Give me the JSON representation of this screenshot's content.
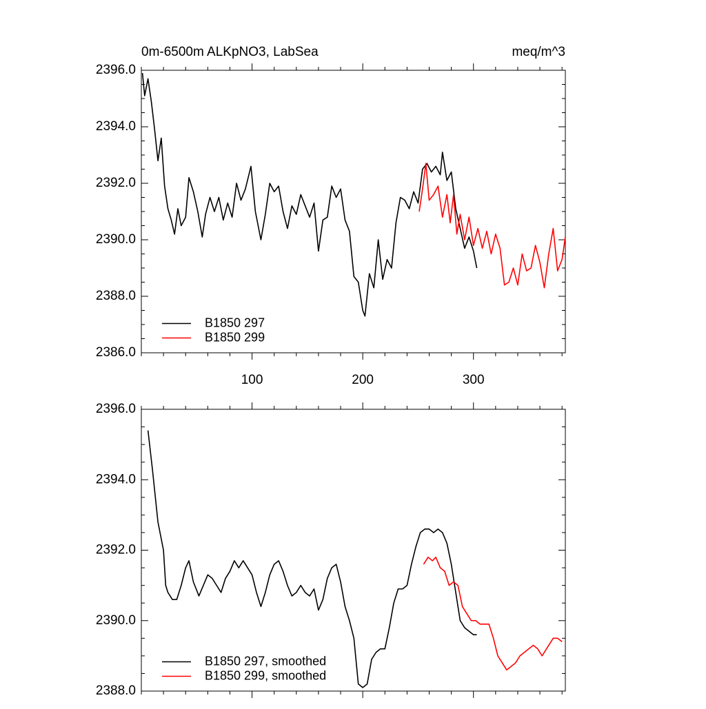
{
  "chart_data": [
    {
      "type": "line",
      "title": "0m-6500m ALKpNO3, LabSea",
      "units": "meq/m^3",
      "xlim": [
        0,
        383
      ],
      "ylim": [
        2386,
        2396
      ],
      "xticks": [
        100,
        200,
        300
      ],
      "yticks": [
        {
          "value": 2386,
          "label": "2386.0"
        },
        {
          "value": 2388,
          "label": "2388.0"
        },
        {
          "value": 2390,
          "label": "2390.0"
        },
        {
          "value": 2392,
          "label": "2392.0"
        },
        {
          "value": 2394,
          "label": "2394.0"
        },
        {
          "value": 2396,
          "label": "2396.0"
        }
      ],
      "legend": "lower left",
      "series": [
        {
          "name": "B1850 297",
          "color": "#000000",
          "x": [
            1,
            3,
            6,
            9,
            12,
            15,
            18,
            21,
            24,
            27,
            30,
            33,
            36,
            40,
            43,
            47,
            51,
            55,
            58,
            62,
            66,
            70,
            74,
            78,
            82,
            86,
            90,
            94,
            99,
            103,
            108,
            112,
            116,
            120,
            124,
            128,
            132,
            136,
            140,
            144,
            148,
            152,
            156,
            160,
            164,
            168,
            172,
            176,
            180,
            184,
            188,
            192,
            196,
            200,
            202,
            206,
            210,
            214,
            218,
            222,
            226,
            230,
            234,
            238,
            242,
            246,
            250,
            254,
            258,
            262,
            266,
            270,
            272,
            276,
            280,
            284,
            288,
            292,
            296,
            300,
            303
          ],
          "values": [
            2395.9,
            2395.1,
            2395.7,
            2394.9,
            2393.9,
            2392.8,
            2393.6,
            2391.9,
            2391.1,
            2390.7,
            2390.2,
            2391.1,
            2390.5,
            2390.8,
            2392.2,
            2391.7,
            2391.0,
            2390.1,
            2390.9,
            2391.5,
            2391.0,
            2391.5,
            2390.7,
            2391.3,
            2390.8,
            2392.0,
            2391.4,
            2391.8,
            2392.6,
            2391.0,
            2390.0,
            2390.9,
            2392.0,
            2391.7,
            2391.9,
            2391.0,
            2390.4,
            2391.2,
            2390.9,
            2391.6,
            2391.2,
            2390.8,
            2391.3,
            2389.6,
            2390.7,
            2390.8,
            2391.9,
            2391.5,
            2391.8,
            2390.7,
            2390.3,
            2388.7,
            2388.5,
            2387.5,
            2387.3,
            2388.8,
            2388.3,
            2390.0,
            2388.6,
            2389.3,
            2389.0,
            2390.6,
            2391.5,
            2391.4,
            2391.1,
            2391.7,
            2391.3,
            2392.5,
            2392.7,
            2392.4,
            2392.6,
            2392.3,
            2393.1,
            2392.1,
            2392.4,
            2391.1,
            2390.4,
            2389.7,
            2390.1,
            2389.6,
            2389.0
          ]
        },
        {
          "name": "B1850 299",
          "color": "#ff0000",
          "x": [
            251,
            254,
            257,
            260,
            264,
            268,
            272,
            276,
            279,
            282,
            285,
            288,
            292,
            296,
            300,
            304,
            308,
            312,
            316,
            320,
            324,
            328,
            332,
            336,
            340,
            344,
            348,
            352,
            356,
            360,
            364,
            368,
            372,
            376,
            380,
            383
          ],
          "values": [
            2391.0,
            2391.8,
            2392.7,
            2391.4,
            2391.6,
            2391.9,
            2390.8,
            2391.6,
            2390.6,
            2391.6,
            2390.2,
            2390.9,
            2390.0,
            2390.8,
            2389.8,
            2390.4,
            2389.7,
            2390.3,
            2389.5,
            2390.2,
            2389.7,
            2388.4,
            2388.5,
            2389.0,
            2388.4,
            2389.5,
            2388.9,
            2389.0,
            2389.8,
            2389.2,
            2388.3,
            2389.5,
            2390.4,
            2388.9,
            2389.3,
            2390.1
          ]
        }
      ]
    },
    {
      "type": "line",
      "xlim": [
        0,
        383
      ],
      "ylim": [
        2388,
        2396
      ],
      "yticks": [
        {
          "value": 2388,
          "label": "2388.0"
        },
        {
          "value": 2390,
          "label": "2390.0"
        },
        {
          "value": 2392,
          "label": "2392.0"
        },
        {
          "value": 2394,
          "label": "2394.0"
        },
        {
          "value": 2396,
          "label": "2396.0"
        }
      ],
      "legend": "lower left",
      "series": [
        {
          "name": "B1850 297, smoothed",
          "color": "#000000",
          "x": [
            6,
            10,
            15,
            20,
            22,
            24,
            28,
            32,
            36,
            40,
            43,
            47,
            52,
            56,
            60,
            64,
            68,
            72,
            76,
            80,
            84,
            88,
            92,
            96,
            100,
            104,
            108,
            112,
            116,
            120,
            124,
            128,
            132,
            136,
            140,
            144,
            148,
            152,
            156,
            160,
            164,
            168,
            172,
            176,
            180,
            184,
            188,
            192,
            196,
            200,
            204,
            208,
            212,
            216,
            220,
            224,
            228,
            232,
            236,
            240,
            244,
            248,
            252,
            256,
            260,
            264,
            268,
            272,
            276,
            280,
            284,
            288,
            292,
            296,
            300,
            303
          ],
          "values": [
            2395.4,
            2394.3,
            2392.8,
            2392.0,
            2391.0,
            2390.8,
            2390.6,
            2390.6,
            2391.0,
            2391.5,
            2391.7,
            2391.1,
            2390.7,
            2391.0,
            2391.3,
            2391.2,
            2391.0,
            2390.8,
            2391.2,
            2391.4,
            2391.7,
            2391.5,
            2391.7,
            2391.5,
            2391.3,
            2390.8,
            2390.4,
            2390.8,
            2391.3,
            2391.6,
            2391.7,
            2391.4,
            2391.0,
            2390.7,
            2390.8,
            2391.0,
            2390.8,
            2390.7,
            2390.9,
            2390.3,
            2390.6,
            2391.2,
            2391.5,
            2391.6,
            2391.1,
            2390.4,
            2390.0,
            2389.5,
            2388.2,
            2388.1,
            2388.2,
            2388.9,
            2389.1,
            2389.2,
            2389.2,
            2389.8,
            2390.5,
            2390.9,
            2390.9,
            2391.0,
            2391.6,
            2392.1,
            2392.5,
            2392.6,
            2392.6,
            2392.5,
            2392.6,
            2392.5,
            2392.2,
            2391.6,
            2390.8,
            2390.0,
            2389.8,
            2389.7,
            2389.6,
            2389.6
          ]
        },
        {
          "name": "B1850 299, smoothed",
          "color": "#ff0000",
          "x": [
            255,
            259,
            263,
            266,
            270,
            274,
            278,
            282,
            286,
            290,
            294,
            298,
            302,
            306,
            310,
            314,
            318,
            322,
            326,
            330,
            334,
            338,
            342,
            346,
            350,
            354,
            358,
            362,
            366,
            370,
            372,
            376,
            380
          ],
          "values": [
            2391.6,
            2391.8,
            2391.7,
            2391.8,
            2391.5,
            2391.4,
            2391.0,
            2391.1,
            2391.0,
            2390.4,
            2390.2,
            2390.0,
            2390.0,
            2389.9,
            2389.9,
            2389.9,
            2389.5,
            2389.0,
            2388.8,
            2388.6,
            2388.7,
            2388.8,
            2389.0,
            2389.1,
            2389.2,
            2389.3,
            2389.2,
            2389.0,
            2389.2,
            2389.4,
            2389.5,
            2389.5,
            2389.4
          ]
        }
      ]
    }
  ]
}
